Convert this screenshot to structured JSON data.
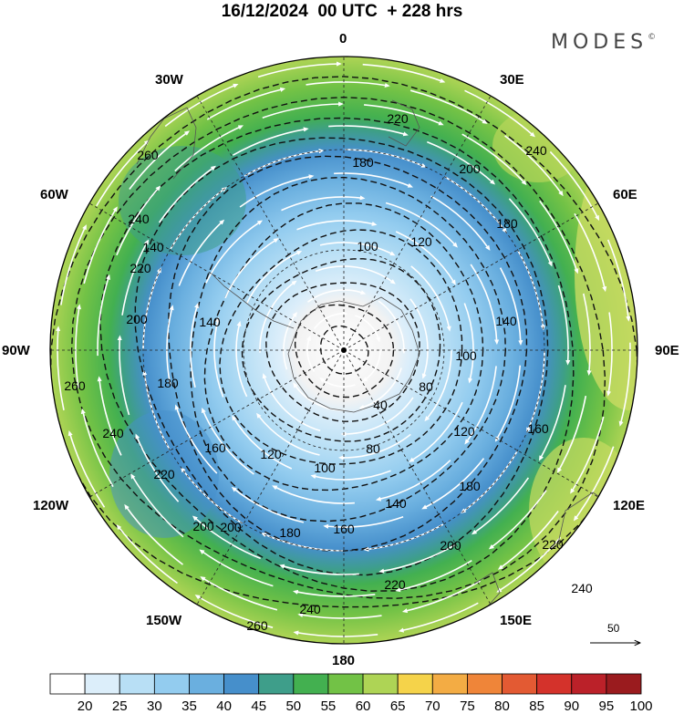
{
  "title": "16/12/2024  00 UTC  + 228 hrs",
  "brand": {
    "name": "MODES",
    "mark": "©"
  },
  "longitude_labels": {
    "lon_0": "0",
    "lon_30e": "30E",
    "lon_60e": "60E",
    "lon_90e": "90E",
    "lon_120e": "120E",
    "lon_150e": "150E",
    "lon_180": "180",
    "lon_150w": "150W",
    "lon_120w": "120W",
    "lon_90w": "90W",
    "lon_60w": "60W",
    "lon_30w": "30W"
  },
  "contour_labels": [
    "220",
    "180",
    "200",
    "180",
    "100",
    "120",
    "140",
    "140",
    "100",
    "80",
    "120",
    "160",
    "180",
    "200",
    "220",
    "240",
    "240",
    "40",
    "80",
    "100",
    "140",
    "160",
    "180",
    "200",
    "220",
    "240",
    "260",
    "260",
    "240",
    "220",
    "200",
    "180",
    "160",
    "120",
    "140",
    "200",
    "220",
    "240",
    "260"
  ],
  "wind_reference": {
    "label": "50"
  },
  "colorbar": {
    "labels": [
      "20",
      "25",
      "30",
      "35",
      "40",
      "45",
      "50",
      "55",
      "60",
      "65",
      "70",
      "75",
      "80",
      "85",
      "90",
      "95",
      "100"
    ],
    "colors": [
      "#ffffff",
      "#dceefa",
      "#b8dff5",
      "#93ccef",
      "#6aafdf",
      "#468fcb",
      "#3e9e8a",
      "#43b050",
      "#72c246",
      "#aed455",
      "#f5d34a",
      "#f3ac44",
      "#ef8539",
      "#e35a33",
      "#d4322b",
      "#bb2129",
      "#9a1b1e"
    ]
  },
  "chart_data": {
    "type": "heatmap",
    "title": "16/12/2024  00 UTC  + 228 hrs",
    "projection": "south polar stereographic",
    "contour_values": [
      40,
      80,
      100,
      120,
      140,
      160,
      180,
      200,
      220,
      240,
      260
    ],
    "legend_values": [
      20,
      25,
      30,
      35,
      40,
      45,
      50,
      55,
      60,
      65,
      70,
      75,
      80,
      85,
      90,
      95,
      100
    ],
    "legend_placement": "bottom",
    "wind_reference_vector": 50
  }
}
